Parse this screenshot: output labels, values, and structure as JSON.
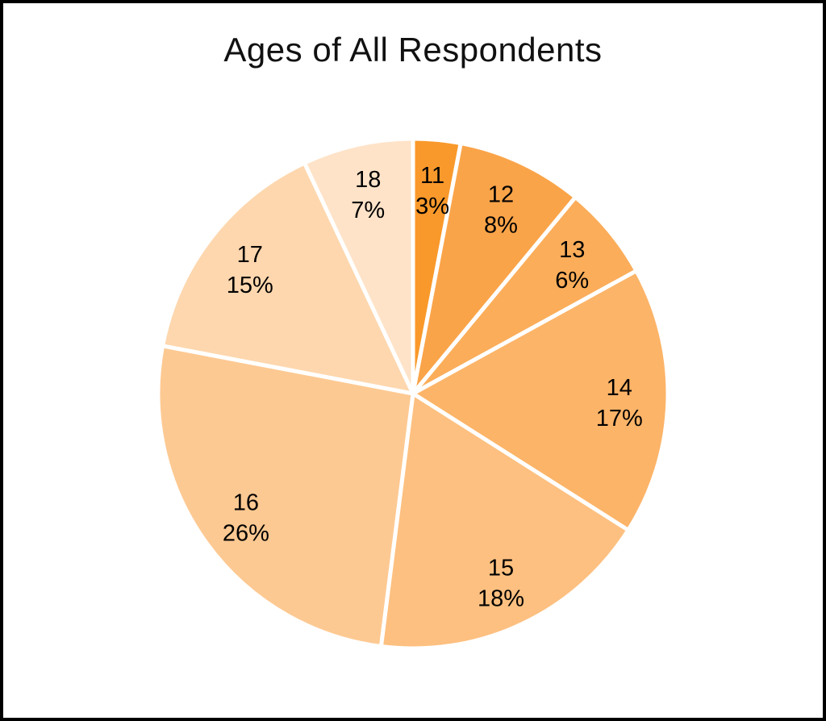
{
  "page": {
    "title": "Ages of All Respondents"
  },
  "chart_data": {
    "type": "pie",
    "title": "Ages of All Respondents",
    "categories": [
      "11",
      "12",
      "13",
      "14",
      "15",
      "16",
      "17",
      "18"
    ],
    "values": [
      3,
      8,
      6,
      17,
      18,
      26,
      15,
      7
    ],
    "percent_labels": [
      "3%",
      "8%",
      "6%",
      "17%",
      "18%",
      "26%",
      "15%",
      "7%"
    ],
    "colors": [
      "#F9992B",
      "#FAA449",
      "#FBAD5A",
      "#FCB468",
      "#FDC080",
      "#FDC992",
      "#FED7AE",
      "#FEE3C8"
    ],
    "slice_border_color": "#FFFFFF",
    "label_text_color": "#000000",
    "start_angle": 0,
    "direction": "clockwise",
    "legend": "none",
    "label_position": "inside"
  }
}
